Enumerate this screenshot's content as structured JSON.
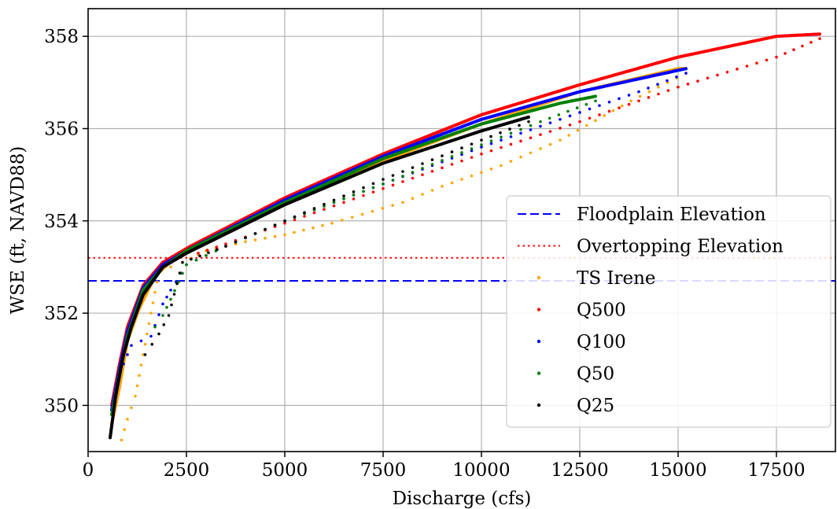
{
  "chart_data": {
    "type": "scatter",
    "title": "",
    "xlabel": "Discharge (cfs)",
    "ylabel": "WSE (ft, NAVD88)",
    "xlim": [
      0,
      19000
    ],
    "ylim": [
      349.0,
      358.6
    ],
    "x_ticks": [
      0,
      2500,
      5000,
      7500,
      10000,
      12500,
      15000,
      17500
    ],
    "x_tick_labels": [
      "0",
      "2500",
      "5000",
      "7500",
      "10000",
      "12500",
      "15000",
      "17500"
    ],
    "y_ticks": [
      350,
      352,
      354,
      356,
      358
    ],
    "y_tick_labels": [
      "350",
      "352",
      "354",
      "356",
      "358"
    ],
    "grid": true,
    "legend_position": "center-right",
    "reference_lines": [
      {
        "name": "Floodplain Elevation",
        "y": 352.7,
        "color": "#0000ff",
        "style": "dashed"
      },
      {
        "name": "Overtopping Elevation",
        "y": 353.2,
        "color": "#ff0000",
        "style": "dotted"
      }
    ],
    "series": [
      {
        "name": "TS Irene",
        "color": "#ffa500",
        "rising": [
          [
            600,
            349.6
          ],
          [
            800,
            350.4
          ],
          [
            1000,
            351.4
          ],
          [
            1300,
            352.1
          ],
          [
            1700,
            352.8
          ],
          [
            2200,
            353.2
          ],
          [
            3000,
            353.55
          ],
          [
            5000,
            354.4
          ],
          [
            7500,
            355.3
          ],
          [
            10000,
            356.1
          ],
          [
            12500,
            356.8
          ],
          [
            15000,
            357.3
          ],
          [
            15200,
            357.3
          ]
        ],
        "falling": [
          [
            15200,
            357.2
          ],
          [
            13800,
            356.6
          ],
          [
            12000,
            355.75
          ],
          [
            10500,
            355.2
          ],
          [
            9000,
            354.75
          ],
          [
            8000,
            354.4
          ],
          [
            6200,
            353.95
          ],
          [
            5000,
            353.7
          ],
          [
            4000,
            353.55
          ],
          [
            3000,
            353.35
          ],
          [
            2400,
            353.1
          ],
          [
            1800,
            352.9
          ],
          [
            1200,
            350.2
          ],
          [
            1000,
            349.7
          ],
          [
            850,
            349.25
          ]
        ]
      },
      {
        "name": "Q500",
        "color": "#ff0000",
        "rising": [
          [
            600,
            350.0
          ],
          [
            800,
            350.9
          ],
          [
            1000,
            351.7
          ],
          [
            1400,
            352.6
          ],
          [
            1900,
            353.1
          ],
          [
            2600,
            353.45
          ],
          [
            5000,
            354.5
          ],
          [
            7500,
            355.45
          ],
          [
            10000,
            356.3
          ],
          [
            12500,
            356.95
          ],
          [
            15000,
            357.55
          ],
          [
            17500,
            358.0
          ],
          [
            18600,
            358.05
          ]
        ],
        "falling": [
          [
            18600,
            357.95
          ],
          [
            17500,
            357.55
          ],
          [
            15000,
            356.9
          ],
          [
            12500,
            356.15
          ],
          [
            10000,
            355.45
          ],
          [
            8000,
            354.85
          ],
          [
            6000,
            354.25
          ],
          [
            4500,
            353.8
          ],
          [
            3500,
            353.5
          ],
          [
            2800,
            353.3
          ]
        ]
      },
      {
        "name": "Q100",
        "color": "#0000ff",
        "rising": [
          [
            600,
            349.9
          ],
          [
            800,
            350.8
          ],
          [
            1000,
            351.6
          ],
          [
            1400,
            352.55
          ],
          [
            1900,
            353.05
          ],
          [
            2600,
            353.4
          ],
          [
            5000,
            354.45
          ],
          [
            7500,
            355.4
          ],
          [
            10000,
            356.2
          ],
          [
            12500,
            356.8
          ],
          [
            15200,
            357.3
          ]
        ],
        "falling": [
          [
            15200,
            357.2
          ],
          [
            14000,
            356.8
          ],
          [
            12500,
            356.35
          ],
          [
            10000,
            355.6
          ],
          [
            7500,
            354.8
          ],
          [
            5000,
            354.0
          ],
          [
            3500,
            353.45
          ],
          [
            2500,
            353.05
          ],
          [
            2100,
            352.5
          ],
          [
            1900,
            352.2
          ],
          [
            1600,
            351.5
          ],
          [
            1100,
            351.3
          ],
          [
            900,
            350.9
          ]
        ]
      },
      {
        "name": "Q50",
        "color": "#008000",
        "rising": [
          [
            600,
            349.8
          ],
          [
            800,
            350.7
          ],
          [
            1000,
            351.5
          ],
          [
            1400,
            352.5
          ],
          [
            1900,
            353.0
          ],
          [
            2500,
            353.35
          ],
          [
            5000,
            354.4
          ],
          [
            7500,
            355.35
          ],
          [
            10000,
            356.1
          ],
          [
            12000,
            356.55
          ],
          [
            12900,
            356.7
          ]
        ],
        "falling": [
          [
            12900,
            356.6
          ],
          [
            11500,
            356.15
          ],
          [
            10000,
            355.65
          ],
          [
            7500,
            354.8
          ],
          [
            5000,
            354.0
          ],
          [
            3500,
            353.45
          ],
          [
            2500,
            353.05
          ],
          [
            2100,
            352.3
          ],
          [
            1900,
            351.95
          ],
          [
            1700,
            351.7
          ]
        ]
      },
      {
        "name": "Q25",
        "color": "#000000",
        "rising": [
          [
            560,
            349.3
          ],
          [
            700,
            350.2
          ],
          [
            900,
            351.1
          ],
          [
            1100,
            351.7
          ],
          [
            1400,
            352.4
          ],
          [
            1900,
            353.0
          ],
          [
            2500,
            353.3
          ],
          [
            5000,
            354.35
          ],
          [
            7500,
            355.25
          ],
          [
            10000,
            355.95
          ],
          [
            11200,
            356.25
          ]
        ],
        "falling": [
          [
            11200,
            356.15
          ],
          [
            10000,
            355.75
          ],
          [
            7500,
            354.9
          ],
          [
            5000,
            354.0
          ],
          [
            3500,
            353.45
          ],
          [
            2400,
            353.1
          ],
          [
            2050,
            351.95
          ],
          [
            1800,
            351.55
          ],
          [
            1450,
            351.1
          ]
        ]
      }
    ]
  }
}
